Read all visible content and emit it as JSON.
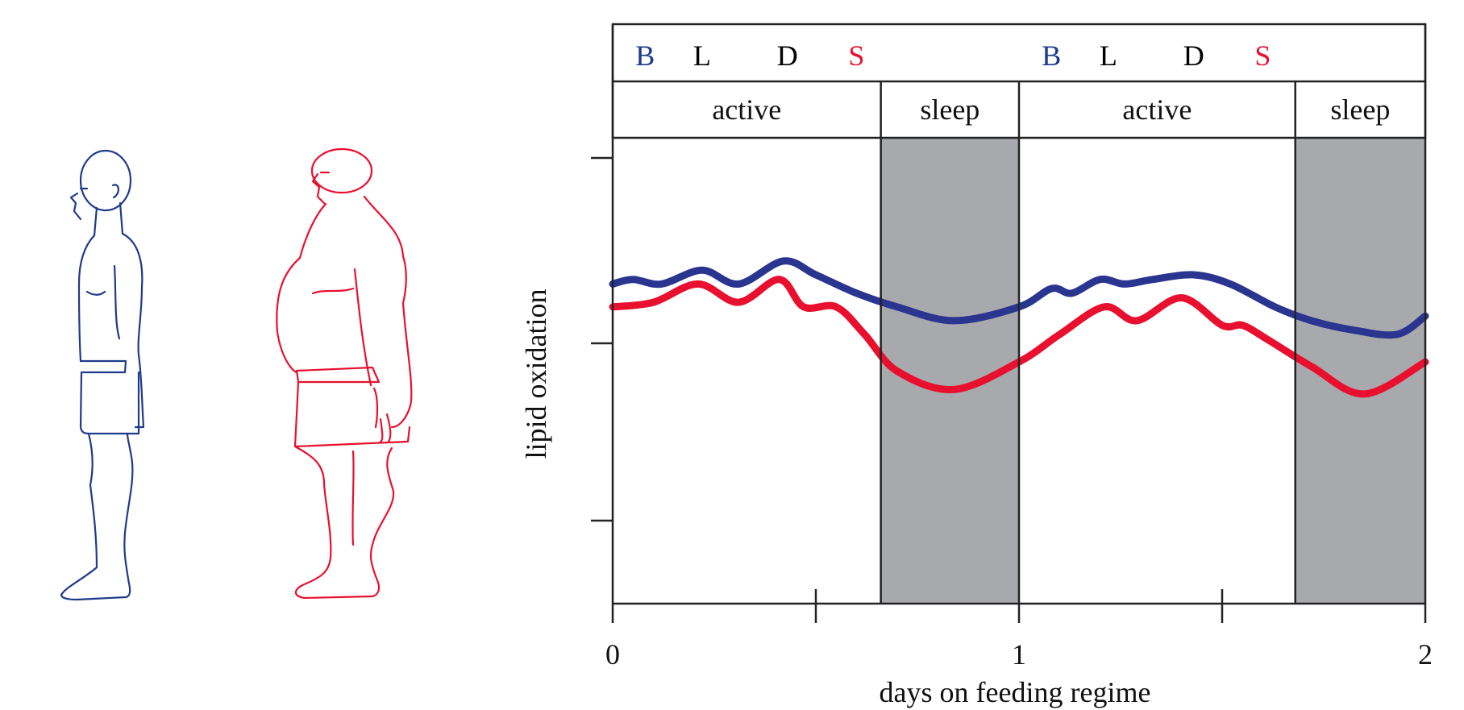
{
  "figures": {
    "lean_color": "#1e3a8a",
    "obese_color": "#e8102e"
  },
  "chart_data": {
    "type": "line",
    "xlabel": "days on feeding regime",
    "ylabel": "lipid oxidation",
    "x_ticks": [
      "0",
      "1",
      "2"
    ],
    "xlim": [
      0,
      2
    ],
    "ylim": [
      0,
      1
    ],
    "grid": false,
    "meal_markers": [
      {
        "label": "B",
        "x": 0.08,
        "color": "#1e3a8a"
      },
      {
        "label": "L",
        "x": 0.22,
        "color": "#000000"
      },
      {
        "label": "D",
        "x": 0.43,
        "color": "#000000"
      },
      {
        "label": "S",
        "x": 0.6,
        "color": "#e8102e"
      },
      {
        "label": "B",
        "x": 1.08,
        "color": "#1e3a8a"
      },
      {
        "label": "L",
        "x": 1.22,
        "color": "#000000"
      },
      {
        "label": "D",
        "x": 1.43,
        "color": "#000000"
      },
      {
        "label": "S",
        "x": 1.6,
        "color": "#e8102e"
      }
    ],
    "phases": [
      {
        "label": "active",
        "start": 0.0,
        "end": 0.66,
        "shaded": false
      },
      {
        "label": "sleep",
        "start": 0.66,
        "end": 1.0,
        "shaded": true
      },
      {
        "label": "active",
        "start": 1.0,
        "end": 1.68,
        "shaded": false
      },
      {
        "label": "sleep",
        "start": 1.68,
        "end": 2.0,
        "shaded": true
      }
    ],
    "shade_color": "#a8a9ad",
    "series": [
      {
        "color": "#2a3590",
        "x": [
          0.0,
          0.05,
          0.12,
          0.22,
          0.31,
          0.42,
          0.5,
          0.6,
          0.7,
          0.84,
          1.0,
          1.08,
          1.13,
          1.2,
          1.26,
          1.33,
          1.43,
          1.52,
          1.63,
          1.72,
          1.82,
          1.93,
          2.0
        ],
        "y": [
          0.69,
          0.7,
          0.69,
          0.72,
          0.69,
          0.74,
          0.71,
          0.67,
          0.64,
          0.61,
          0.64,
          0.68,
          0.67,
          0.7,
          0.69,
          0.7,
          0.71,
          0.69,
          0.64,
          0.61,
          0.59,
          0.58,
          0.62
        ]
      },
      {
        "color": "#e8102e",
        "x": [
          0.0,
          0.1,
          0.21,
          0.31,
          0.41,
          0.47,
          0.55,
          0.62,
          0.7,
          0.84,
          1.0,
          1.1,
          1.21,
          1.29,
          1.4,
          1.5,
          1.55,
          1.61,
          1.72,
          1.85,
          2.0
        ],
        "y": [
          0.64,
          0.65,
          0.69,
          0.65,
          0.7,
          0.64,
          0.64,
          0.58,
          0.5,
          0.46,
          0.52,
          0.58,
          0.64,
          0.61,
          0.66,
          0.6,
          0.6,
          0.57,
          0.51,
          0.45,
          0.52
        ]
      }
    ]
  }
}
